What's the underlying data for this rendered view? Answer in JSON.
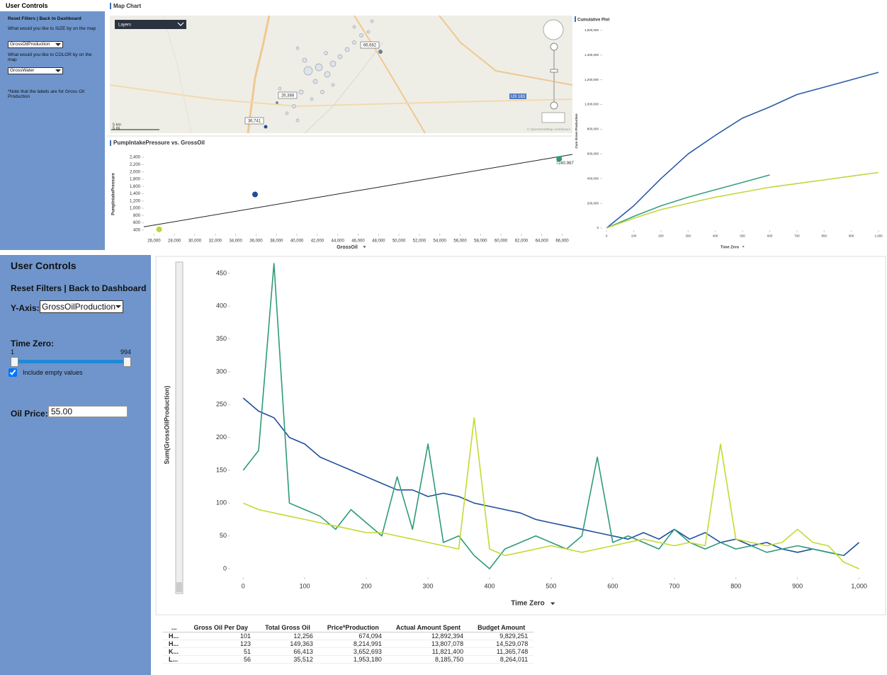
{
  "top_panel": {
    "title": "User Controls",
    "reset": "Reset Filters",
    "separator": "|",
    "back": "Back to Dashboard",
    "size_prompt": "What would you like to SIZE by on the map",
    "size_value": "GrossOilProduction",
    "color_prompt": "What would you like to COLOR by on the map",
    "color_value": "GrossWater",
    "note": "*Note that the labels are for Gross Oil Production"
  },
  "map": {
    "title": "Map Chart",
    "layers": "Layers",
    "labels": [
      "66,682",
      "26,388",
      "36,741"
    ],
    "road": "US 183",
    "scale_km": "5 km",
    "scale_mi": "5 mi",
    "attribution": "© OpenStreetMap contributors"
  },
  "bottom_panel": {
    "title": "User Controls",
    "reset": "Reset Filters",
    "separator": "|",
    "back": "Back to Dashboard",
    "y_axis_label": "Y-Axis:",
    "y_axis_value": "GrossOilProduction",
    "time_zero_label": "Time Zero:",
    "slider_min": "1",
    "slider_max": "994",
    "include_empty": "Include empty values",
    "oil_price_label": "Oil Price:",
    "oil_price_value": "55.00"
  },
  "chart_data": [
    {
      "type": "scatter",
      "title": "PumpIntakePressure vs. GrossOil",
      "x_label": "GrossOil",
      "y_label": "PumpIntakePressure",
      "x": [
        26500,
        35900,
        65700
      ],
      "values": [
        420,
        1380,
        2360
      ],
      "colors": [
        "#c5d435",
        "#1f4e96",
        "#2e9a72"
      ],
      "annotation": "7240.967",
      "trendline": {
        "x": [
          25000,
          67000
        ],
        "y": [
          490,
          2480
        ]
      },
      "trendline_color": "#222222",
      "xlim": [
        25000,
        67000
      ],
      "ylim": [
        300,
        2500
      ],
      "xticks": [
        {
          "value": 26000,
          "label": "26,000"
        },
        {
          "value": 28000,
          "label": "28,000"
        },
        {
          "value": 30000,
          "label": "30,000"
        },
        {
          "value": 32000,
          "label": "32,000"
        },
        {
          "value": 34000,
          "label": "34,000"
        },
        {
          "value": 36000,
          "label": "36,000"
        },
        {
          "value": 38000,
          "label": "38,000"
        },
        {
          "value": 40000,
          "label": "40,000"
        },
        {
          "value": 42000,
          "label": "42,000"
        },
        {
          "value": 44000,
          "label": "44,000"
        },
        {
          "value": 46000,
          "label": "46,000"
        },
        {
          "value": 48000,
          "label": "48,000"
        },
        {
          "value": 50000,
          "label": "50,000"
        },
        {
          "value": 52000,
          "label": "52,000"
        },
        {
          "value": 54000,
          "label": "54,000"
        },
        {
          "value": 56000,
          "label": "56,000"
        },
        {
          "value": 58000,
          "label": "58,000"
        },
        {
          "value": 60000,
          "label": "60,000"
        },
        {
          "value": 62000,
          "label": "62,000"
        },
        {
          "value": 64000,
          "label": "64,000"
        },
        {
          "value": 66000,
          "label": "66,000"
        }
      ],
      "yticks": [
        400,
        600,
        800,
        {
          "value": 1000,
          "label": "1,000"
        },
        {
          "value": 1200,
          "label": "1,200"
        },
        {
          "value": 1400,
          "label": "1,400"
        },
        {
          "value": 1600,
          "label": "1,600"
        },
        {
          "value": 1800,
          "label": "1,800"
        },
        {
          "value": 2000,
          "label": "2,000"
        },
        {
          "value": 2200,
          "label": "2,200"
        },
        {
          "value": 2400,
          "label": "2,400"
        }
      ],
      "grid": false
    },
    {
      "type": "line",
      "title": "Cumulative Plot",
      "x_label": "Time Zero",
      "y_label": "Cum Gross Production",
      "x": [
        0,
        100,
        200,
        300,
        400,
        500,
        600,
        700,
        800,
        900,
        1000
      ],
      "series": [
        {
          "color": "#2a5ca8",
          "values": [
            0,
            180000,
            400000,
            600000,
            750000,
            890000,
            980000,
            1080000,
            1140000,
            1200000,
            1260000
          ]
        },
        {
          "color": "#3a9e86",
          "values": [
            0,
            95000,
            180000,
            250000,
            310000,
            370000,
            430000,
            null,
            null,
            null,
            null
          ]
        },
        {
          "color": "#c2d63e",
          "values": [
            0,
            80000,
            150000,
            200000,
            250000,
            290000,
            330000,
            360000,
            390000,
            420000,
            450000
          ]
        }
      ],
      "xlim": [
        -16,
        1013
      ],
      "ylim": [
        -17000,
        1616000
      ],
      "xticks": [
        0,
        100,
        200,
        300,
        400,
        500,
        600,
        700,
        800,
        900,
        {
          "value": 1000,
          "label": "1,000"
        }
      ],
      "yticks": [
        0,
        {
          "value": 200000,
          "label": "200,000"
        },
        {
          "value": 400000,
          "label": "400,000"
        },
        {
          "value": 600000,
          "label": "600,000"
        },
        {
          "value": 800000,
          "label": "800,000"
        },
        {
          "value": 1000000,
          "label": "1,000,000"
        },
        {
          "value": 1200000,
          "label": "1,200,000"
        },
        {
          "value": 1400000,
          "label": "1,400,000"
        },
        {
          "value": 1600000,
          "label": "1,600,000"
        }
      ],
      "grid": false
    },
    {
      "type": "line",
      "x_label": "Time Zero",
      "y_label": "Sum(GrossOilProduction)",
      "x": [
        0,
        25,
        50,
        75,
        100,
        125,
        150,
        175,
        200,
        225,
        250,
        275,
        300,
        325,
        350,
        375,
        400,
        425,
        450,
        475,
        500,
        525,
        550,
        575,
        600,
        625,
        650,
        675,
        700,
        725,
        750,
        775,
        800,
        825,
        850,
        875,
        900,
        925,
        950,
        975,
        1000
      ],
      "series": [
        {
          "color": "#1f4e9c",
          "values": [
            260,
            240,
            230,
            200,
            190,
            170,
            160,
            150,
            140,
            130,
            120,
            120,
            110,
            115,
            110,
            100,
            95,
            90,
            85,
            75,
            70,
            65,
            60,
            55,
            50,
            45,
            55,
            45,
            60,
            45,
            55,
            40,
            45,
            35,
            40,
            30,
            25,
            30,
            25,
            20,
            40
          ]
        },
        {
          "color": "#2e9a7a",
          "values": [
            150,
            180,
            465,
            100,
            90,
            80,
            60,
            90,
            70,
            50,
            140,
            60,
            190,
            40,
            50,
            20,
            0,
            30,
            40,
            50,
            40,
            30,
            50,
            170,
            40,
            50,
            40,
            30,
            60,
            40,
            30,
            40,
            30,
            35,
            25,
            30,
            35,
            30,
            25,
            20,
            null
          ]
        },
        {
          "color": "#c5d932",
          "values": [
            100,
            90,
            85,
            80,
            75,
            70,
            65,
            60,
            55,
            55,
            50,
            45,
            40,
            35,
            30,
            230,
            30,
            20,
            25,
            30,
            35,
            30,
            25,
            30,
            35,
            40,
            45,
            40,
            35,
            40,
            35,
            190,
            45,
            40,
            35,
            40,
            60,
            40,
            35,
            10,
            0
          ]
        }
      ],
      "xlim": [
        -21,
        1020
      ],
      "ylim": [
        -13,
        465
      ],
      "xticks": [
        0,
        100,
        200,
        300,
        400,
        500,
        600,
        700,
        800,
        900,
        {
          "value": 1000,
          "label": "1,000"
        }
      ],
      "yticks": [
        0,
        50,
        100,
        150,
        200,
        250,
        300,
        350,
        400,
        450
      ],
      "grid": false
    }
  ],
  "table": {
    "headers": [
      "...",
      "Gross Oil Per Day",
      "Total Gross Oil",
      "Price*Production",
      "Actual Amount Spent",
      "Budget Amount"
    ],
    "rows": [
      [
        "H...",
        "101",
        "12,256",
        "674,094",
        "12,892,394",
        "9,829,251"
      ],
      [
        "H...",
        "123",
        "149,363",
        "8,214,991",
        "13,807,078",
        "14,529,078"
      ],
      [
        "K...",
        "51",
        "66,413",
        "3,652,693",
        "11,821,400",
        "11,365,748"
      ],
      [
        "L...",
        "56",
        "35,512",
        "1,953,180",
        "8,185,750",
        "8,264,011"
      ]
    ]
  }
}
